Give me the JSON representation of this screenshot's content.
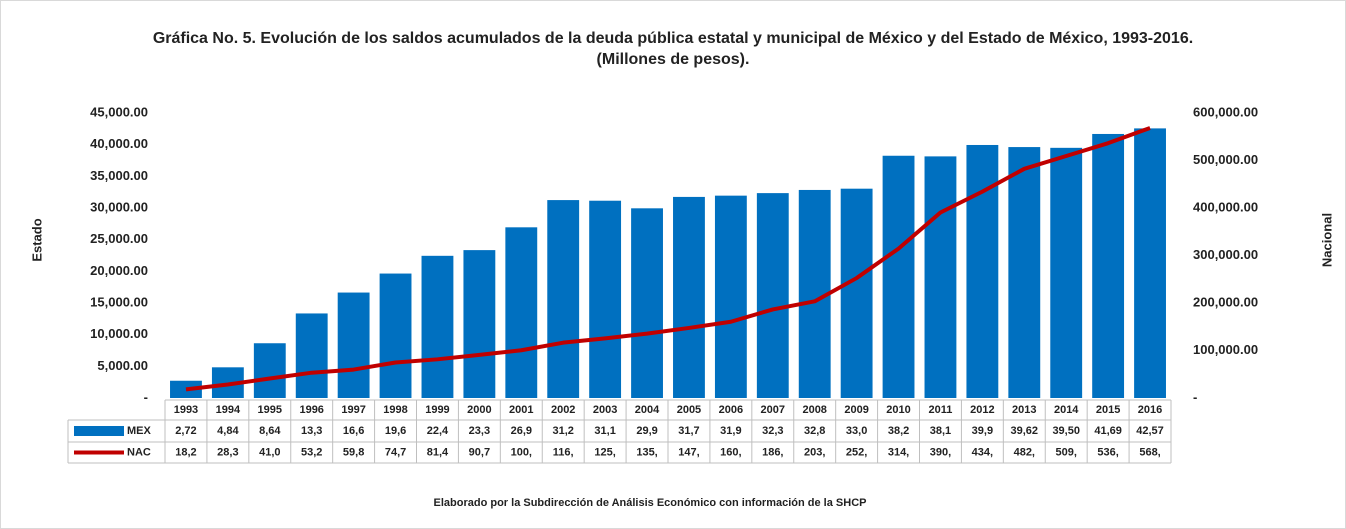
{
  "chart_data": {
    "type": "bar-line",
    "title": "Gráfica No. 5. Evolución de los saldos acumulados de la deuda pública estatal y municipal de México y del Estado de México,  1993-2016. (Millones de pesos).",
    "y_label": "Estado",
    "y2_label": "Nacional",
    "note": "Elaborado por la Subdirección de Análisis Económico con información de la SHCP",
    "categories": [
      "1993",
      "1994",
      "1995",
      "1996",
      "1997",
      "1998",
      "1999",
      "2000",
      "2001",
      "2002",
      "2003",
      "2004",
      "2005",
      "2006",
      "2007",
      "2008",
      "2009",
      "2010",
      "2011",
      "2012",
      "2013",
      "2014",
      "2015",
      "2016"
    ],
    "series": [
      {
        "name": "MEX",
        "type": "bar",
        "color": "#0070c0",
        "values": [
          2725,
          4845,
          8645,
          13350,
          16650,
          19650,
          22450,
          23350,
          26950,
          31250,
          31150,
          29950,
          31750,
          31950,
          32350,
          32850,
          33050,
          38250,
          38150,
          39950,
          39620,
          39500,
          41690,
          42570
        ],
        "value_labels": [
          "2,72",
          "4,84",
          "8,64",
          "13,3",
          "16,6",
          "19,6",
          "22,4",
          "23,3",
          "26,9",
          "31,2",
          "31,1",
          "29,9",
          "31,7",
          "31,9",
          "32,3",
          "32,8",
          "33,0",
          "38,2",
          "38,1",
          "39,9",
          "39,62",
          "39,50",
          "41,69",
          "42,57"
        ]
      },
      {
        "name": "NAC",
        "type": "line",
        "axis": "y2",
        "color": "#c00000",
        "values": [
          18250,
          28350,
          41050,
          53250,
          59850,
          74750,
          81450,
          90750,
          100500,
          116500,
          125500,
          135500,
          147500,
          160500,
          186500,
          203500,
          252500,
          314500,
          390500,
          434500,
          482500,
          509500,
          536500,
          568500
        ],
        "value_labels": [
          "18,2",
          "28,3",
          "41,0",
          "53,2",
          "59,8",
          "74,7",
          "81,4",
          "90,7",
          "100,",
          "116,",
          "125,",
          "135,",
          "147,",
          "160,",
          "186,",
          "203,",
          "252,",
          "314,",
          "390,",
          "434,",
          "482,",
          "509,",
          "536,",
          "568,"
        ]
      }
    ],
    "ylim": [
      0,
      45000
    ],
    "yticks": [
      {
        "value": 0,
        "label": "-"
      },
      {
        "value": 5000,
        "label": "5,000.00"
      },
      {
        "value": 10000,
        "label": "10,000.00"
      },
      {
        "value": 15000,
        "label": "15,000.00"
      },
      {
        "value": 20000,
        "label": "20,000.00"
      },
      {
        "value": 25000,
        "label": "25,000.00"
      },
      {
        "value": 30000,
        "label": "30,000.00"
      },
      {
        "value": 35000,
        "label": "35,000.00"
      },
      {
        "value": 40000,
        "label": "40,000.00"
      },
      {
        "value": 45000,
        "label": "45,000.00"
      }
    ],
    "y2lim": [
      0,
      600000
    ],
    "y2ticks": [
      {
        "value": 0,
        "label": "-"
      },
      {
        "value": 100000,
        "label": "100,000.00"
      },
      {
        "value": 200000,
        "label": "200,000.00"
      },
      {
        "value": 300000,
        "label": "300,000.00"
      },
      {
        "value": 400000,
        "label": "400,000.00"
      },
      {
        "value": 500000,
        "label": "500,000.00"
      },
      {
        "value": 600000,
        "label": "600,000.00"
      }
    ]
  }
}
